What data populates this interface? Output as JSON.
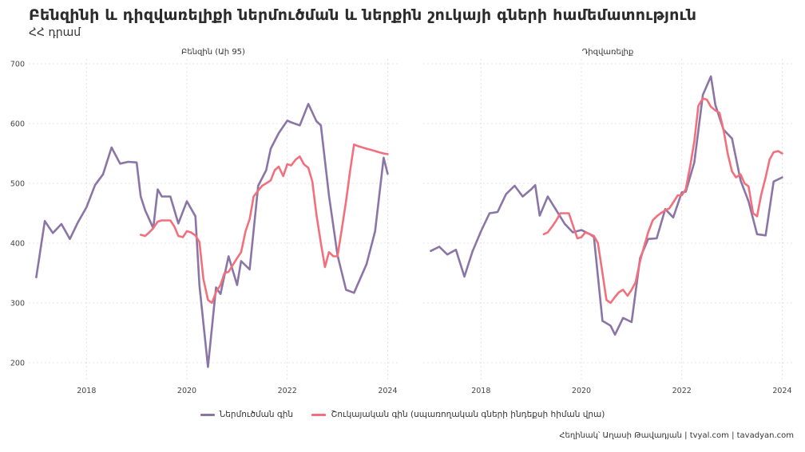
{
  "title": "Բենզինի և դիզվառելիքի ներմուծման և ներքին շուկայի գների համեմատություն",
  "subtitle": "ՀՀ դրամ",
  "caption": "Հեղինակ՝ Աղասի Թավադյան   |   tvyal.com   |   tavadyan.com",
  "colors": {
    "import": "#8a75a6",
    "retail": "#f2707c",
    "grid": "#dcdcdc"
  },
  "chart_data": {
    "type": "line",
    "ylim": [
      180,
      700
    ],
    "yticks": [
      200,
      300,
      400,
      500,
      600,
      700
    ],
    "xticks": [
      2018,
      2020,
      2022,
      2024
    ],
    "legend_position": "bottom",
    "grid": true,
    "series_names": {
      "import": "Ներմուծման գին",
      "retail": "Շուկայական գին (սպառողական գների ինդեքսի հիման վրա)"
    },
    "panels": [
      {
        "label": "Բենզին (Աի 95)",
        "xlim": [
          2016.85,
          2024.2
        ],
        "series": [
          {
            "key": "import",
            "x": [
              2017.0,
              2017.17,
              2017.33,
              2017.5,
              2017.67,
              2017.83,
              2018.0,
              2018.17,
              2018.33,
              2018.5,
              2018.67,
              2018.83,
              2019.0,
              2019.08,
              2019.17,
              2019.33,
              2019.42,
              2019.5,
              2019.67,
              2019.83,
              2020.0,
              2020.17,
              2020.25,
              2020.42,
              2020.58,
              2020.67,
              2020.83,
              2021.0,
              2021.08,
              2021.25,
              2021.42,
              2021.58,
              2021.67,
              2021.83,
              2022.0,
              2022.08,
              2022.25,
              2022.42,
              2022.58,
              2022.67,
              2022.83,
              2023.0,
              2023.17,
              2023.33,
              2023.58,
              2023.75,
              2023.92,
              2024.0
            ],
            "y": [
              343,
              437,
              417,
              432,
              407,
              435,
              460,
              497,
              515,
              560,
              533,
              536,
              535,
              478,
              455,
              425,
              490,
              478,
              478,
              433,
              470,
              445,
              330,
              193,
              326,
              315,
              378,
              330,
              370,
              356,
              496,
              522,
              558,
              584,
              605,
              602,
              597,
              633,
              604,
              597,
              480,
              380,
              322,
              317,
              365,
              420,
              543,
              516
            ]
          },
          {
            "key": "retail",
            "x": [
              2019.08,
              2019.17,
              2019.25,
              2019.33,
              2019.42,
              2019.5,
              2019.58,
              2019.67,
              2019.75,
              2019.83,
              2019.92,
              2020.0,
              2020.08,
              2020.17,
              2020.25,
              2020.33,
              2020.42,
              2020.5,
              2020.58,
              2020.67,
              2020.75,
              2020.83,
              2020.92,
              2021.0,
              2021.08,
              2021.17,
              2021.25,
              2021.33,
              2021.42,
              2021.5,
              2021.58,
              2021.67,
              2021.75,
              2021.83,
              2021.92,
              2022.0,
              2022.08,
              2022.17,
              2022.25,
              2022.33,
              2022.42,
              2022.5,
              2022.58,
              2022.67,
              2022.75,
              2022.83,
              2022.92,
              2023.0,
              2023.08,
              2023.17,
              2023.25,
              2023.33,
              2023.42,
              2023.5,
              2023.58,
              2023.67,
              2023.75,
              2023.83,
              2023.92,
              2024.0
            ],
            "y": [
              414,
              412,
              418,
              425,
              436,
              438,
              438,
              438,
              428,
              412,
              410,
              420,
              418,
              413,
              402,
              340,
              305,
              300,
              318,
              330,
              350,
              352,
              364,
              375,
              385,
              420,
              440,
              478,
              488,
              496,
              500,
              505,
              522,
              528,
              512,
              532,
              530,
              540,
              545,
              532,
              526,
              503,
              448,
              400,
              360,
              385,
              378,
              378,
              420,
              470,
              520,
              565,
              562,
              560,
              558,
              556,
              554,
              552,
              550,
              549
            ]
          }
        ]
      },
      {
        "label": "Դիզվառելիք",
        "xlim": [
          2016.85,
          2024.2
        ],
        "series": [
          {
            "key": "import",
            "x": [
              2017.0,
              2017.17,
              2017.33,
              2017.5,
              2017.67,
              2017.83,
              2018.0,
              2018.17,
              2018.33,
              2018.5,
              2018.67,
              2018.83,
              2019.0,
              2019.08,
              2019.17,
              2019.33,
              2019.5,
              2019.67,
              2019.83,
              2020.0,
              2020.17,
              2020.25,
              2020.42,
              2020.58,
              2020.67,
              2020.83,
              2021.0,
              2021.17,
              2021.33,
              2021.5,
              2021.67,
              2021.83,
              2022.0,
              2022.08,
              2022.25,
              2022.42,
              2022.58,
              2022.67,
              2022.83,
              2023.0,
              2023.17,
              2023.33,
              2023.5,
              2023.67,
              2023.83,
              2024.0
            ],
            "y": [
              387,
              394,
              381,
              389,
              344,
              386,
              420,
              450,
              452,
              482,
              496,
              478,
              490,
              497,
              446,
              478,
              455,
              432,
              418,
              422,
              415,
              410,
              270,
              262,
              247,
              275,
              268,
              375,
              407,
              408,
              457,
              443,
              485,
              486,
              535,
              648,
              679,
              631,
              590,
              575,
              505,
              470,
              415,
              413,
              503,
              510
            ]
          },
          {
            "key": "retail",
            "x": [
              2019.25,
              2019.33,
              2019.42,
              2019.5,
              2019.58,
              2019.67,
              2019.75,
              2019.83,
              2019.92,
              2020.0,
              2020.08,
              2020.17,
              2020.25,
              2020.33,
              2020.42,
              2020.5,
              2020.58,
              2020.67,
              2020.75,
              2020.83,
              2020.92,
              2021.0,
              2021.08,
              2021.17,
              2021.25,
              2021.33,
              2021.42,
              2021.5,
              2021.58,
              2021.67,
              2021.75,
              2021.83,
              2021.92,
              2022.0,
              2022.08,
              2022.17,
              2022.25,
              2022.33,
              2022.42,
              2022.5,
              2022.58,
              2022.67,
              2022.75,
              2022.83,
              2022.92,
              2023.0,
              2023.08,
              2023.17,
              2023.25,
              2023.33,
              2023.42,
              2023.5,
              2023.58,
              2023.67,
              2023.75,
              2023.83,
              2023.92,
              2024.0
            ],
            "y": [
              415,
              418,
              428,
              438,
              450,
              450,
              450,
              430,
              408,
              410,
              418,
              415,
              412,
              400,
              350,
              305,
              300,
              310,
              318,
              322,
              312,
              322,
              335,
              370,
              395,
              418,
              438,
              445,
              450,
              455,
              458,
              468,
              480,
              480,
              490,
              530,
              570,
              630,
              642,
              640,
              628,
              622,
              618,
              590,
              548,
              520,
              510,
              515,
              500,
              495,
              450,
              445,
              480,
              510,
              540,
              552,
              554,
              550
            ]
          }
        ]
      }
    ]
  }
}
